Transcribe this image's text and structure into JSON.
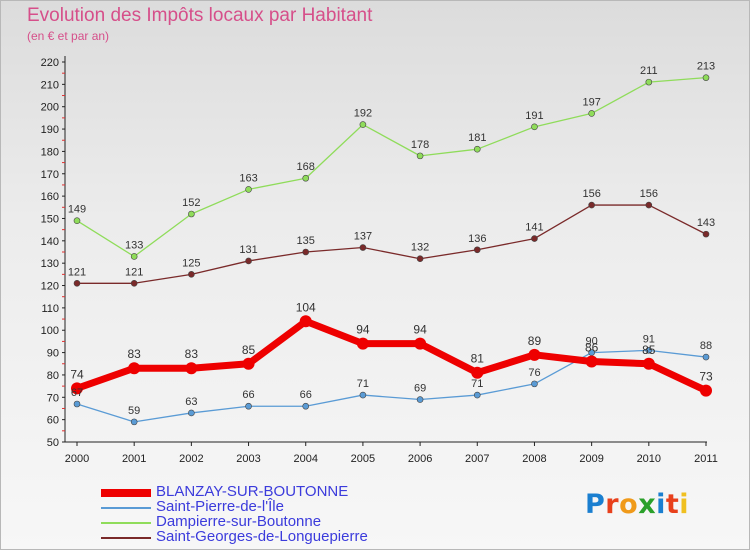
{
  "title": "Evolution des Impôts locaux par Habitant",
  "subtitle": "(en € et par an)",
  "logo": {
    "text": "Proxiti",
    "colors": [
      "#1a7fd0",
      "#e8401c",
      "#f09a1a",
      "#2aa02a",
      "#1a7fd0",
      "#e8401c",
      "#f0c020"
    ]
  },
  "chart_data": {
    "type": "line",
    "x": [
      "2000",
      "2001",
      "2002",
      "2003",
      "2004",
      "2005",
      "2006",
      "2007",
      "2008",
      "2009",
      "2010",
      "2011"
    ],
    "ylim": [
      50,
      220
    ],
    "yticks": [
      "50",
      "60",
      "70",
      "80",
      "90",
      "100",
      "110",
      "120",
      "130",
      "140",
      "150",
      "160",
      "170",
      "180",
      "190",
      "200",
      "210",
      "220"
    ],
    "grid": false,
    "legend_position": "bottom-left",
    "series": [
      {
        "name": "BLANZAY-SUR-BOUTONNE",
        "color": "#ee0000",
        "width": 7,
        "marker": 6,
        "values": [
          74,
          83,
          83,
          85,
          104,
          94,
          94,
          81,
          89,
          86,
          85,
          73
        ],
        "labels": [
          "74",
          "83",
          "83",
          "85",
          "104",
          "94",
          "94",
          "81",
          "89",
          "86",
          "85",
          "73"
        ]
      },
      {
        "name": "Saint-Pierre-de-l'Île",
        "color": "#5a9bd5",
        "width": 1.3,
        "marker": 3,
        "values": [
          67,
          59,
          63,
          66,
          66,
          71,
          69,
          71,
          76,
          90,
          91,
          88
        ],
        "labels": [
          "67",
          "59",
          "63",
          "66",
          "66",
          "71",
          "69",
          "71",
          "76",
          "90",
          "91",
          "88"
        ]
      },
      {
        "name": "Dampierre-sur-Boutonne",
        "color": "#8fdc5a",
        "width": 1.3,
        "marker": 3,
        "values": [
          149,
          133,
          152,
          163,
          168,
          192,
          178,
          181,
          191,
          197,
          211,
          213
        ],
        "labels": [
          "149",
          "133",
          "152",
          "163",
          "168",
          "192",
          "178",
          "181",
          "191",
          "197",
          "211",
          "213"
        ]
      },
      {
        "name": "Saint-Georges-de-Longuepierre",
        "color": "#7a2a2a",
        "width": 1.3,
        "marker": 3,
        "values": [
          121,
          121,
          125,
          131,
          135,
          137,
          132,
          136,
          141,
          156,
          156,
          143
        ],
        "labels": [
          "121",
          "121",
          "125",
          "131",
          "135",
          "137",
          "132",
          "136",
          "141",
          "156",
          "156",
          "143"
        ]
      }
    ]
  }
}
